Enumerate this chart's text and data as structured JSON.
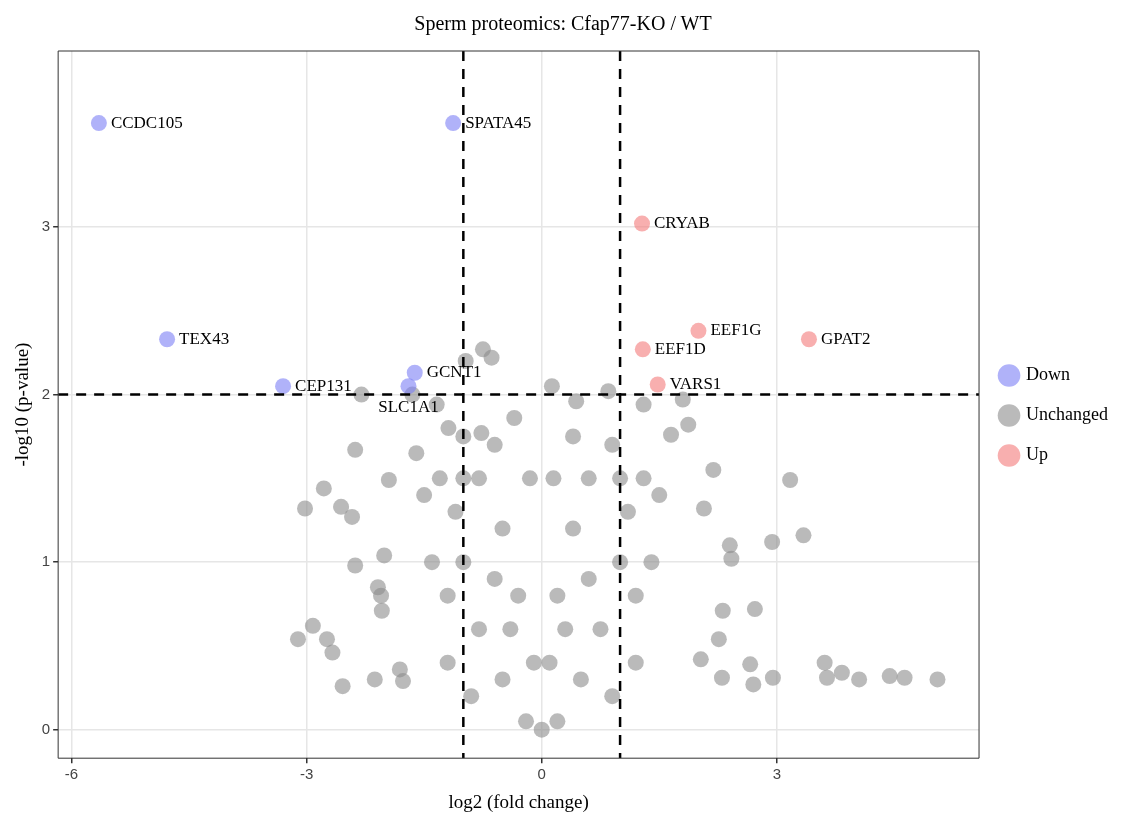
{
  "chart_data": {
    "type": "scatter",
    "title": "Sperm proteomics: Cfap77-KO / WT",
    "xlabel": "log2 (fold change)",
    "ylabel": "-log10 (p-value)",
    "xlim": [
      -6.17,
      5.58
    ],
    "ylim": [
      -0.17,
      4.05
    ],
    "xticks": [
      -6,
      -3,
      0,
      3
    ],
    "yticks": [
      0,
      1,
      2,
      3
    ],
    "grid": true,
    "legend": "right",
    "marker": "circle",
    "series": [
      {
        "name": "Down",
        "color": "#7b7ff5",
        "x": [
          -5.65,
          -1.13,
          -4.78,
          -3.3,
          -1.7,
          -1.62
        ],
        "values": [
          3.62,
          3.62,
          2.33,
          2.05,
          2.05,
          2.13
        ]
      },
      {
        "name": "Unchanged",
        "color": "#8c8c8c",
        "x": [
          3.61,
          3.83,
          4.05,
          4.44,
          4.63,
          5.05,
          3.64,
          3.17,
          3.34,
          2.94,
          2.72,
          2.42,
          2.4,
          2.19,
          2.07,
          2.31,
          2.26,
          2.3,
          2.66,
          2.7,
          2.95,
          2.03,
          1.87,
          1.65,
          1.8,
          1.3,
          -3.02,
          -2.78,
          -2.92,
          -2.74,
          -2.67,
          -2.54,
          -2.56,
          -2.04,
          -2.38,
          -2.01,
          -2.13,
          -1.77,
          -1.81,
          -2.42,
          -1.95,
          -1.6,
          -1.19,
          -1.65,
          -2.38,
          -2.3,
          -1.34,
          -0.97,
          -0.75,
          -0.64,
          0.13,
          0.85,
          0.44,
          -0.35,
          -0.77,
          -2.05,
          -3.11,
          -2.09,
          0,
          -0.2,
          0.2,
          -0.5,
          0.5,
          -0.8,
          0.75,
          -1,
          1,
          -1.1,
          1.1,
          -1,
          1,
          -0.8,
          0.6,
          -0.5,
          0.4,
          -0.3,
          0.2,
          -0.1,
          0.1,
          -1.3,
          1.3,
          -1.5,
          1.5,
          -1.2,
          1.2,
          -1.4,
          1.4,
          -0.9,
          0.9,
          -1.2,
          1.2,
          -0.6,
          0.4,
          -1,
          0.9,
          -0.15,
          0.15,
          -0.6,
          0.6,
          -0.4,
          0.3
        ],
        "values": [
          0.4,
          0.34,
          0.3,
          0.32,
          0.31,
          0.3,
          0.31,
          1.49,
          1.16,
          1.12,
          0.72,
          1.02,
          1.1,
          1.55,
          1.32,
          0.71,
          0.54,
          0.31,
          0.39,
          0.27,
          0.31,
          0.42,
          1.82,
          1.76,
          1.97,
          1.94,
          1.32,
          1.44,
          0.62,
          0.54,
          0.46,
          0.26,
          1.33,
          0.71,
          0.98,
          1.04,
          0.3,
          0.29,
          0.36,
          1.27,
          1.49,
          1.65,
          1.8,
          2,
          1.67,
          2,
          1.94,
          2.2,
          2.27,
          2.22,
          2.05,
          2.02,
          1.96,
          1.86,
          1.77,
          0.8,
          0.54,
          0.85,
          0,
          0.05,
          0.05,
          0.3,
          0.3,
          0.6,
          0.6,
          1,
          1,
          1.3,
          1.3,
          1.5,
          1.5,
          1.5,
          1.5,
          1.2,
          1.2,
          0.8,
          0.8,
          0.4,
          0.4,
          1.5,
          1.5,
          1.4,
          1.4,
          0.8,
          0.8,
          1,
          1,
          0.2,
          0.2,
          0.4,
          0.4,
          1.7,
          1.75,
          1.75,
          1.7,
          1.5,
          1.5,
          0.9,
          0.9,
          0.6,
          0.6
        ]
      },
      {
        "name": "Up",
        "color": "#f47a7a",
        "x": [
          1.28,
          2.0,
          3.41,
          1.29,
          1.48
        ],
        "values": [
          3.02,
          2.38,
          2.33,
          2.27,
          2.06
        ]
      }
    ],
    "ref_lines": [
      {
        "axis": "x",
        "value": -1,
        "line_style": "dashed"
      },
      {
        "axis": "x",
        "value": 1,
        "line_style": "dashed"
      },
      {
        "axis": "y",
        "value": 2,
        "line_style": "dashed"
      }
    ],
    "annotations": [
      {
        "text": "CCDC105",
        "x": -5.65,
        "y": 3.62
      },
      {
        "text": "SPATA45",
        "x": -1.13,
        "y": 3.62
      },
      {
        "text": "TEX43",
        "x": -4.78,
        "y": 2.33
      },
      {
        "text": "CEP131",
        "x": -3.3,
        "y": 2.05
      },
      {
        "text": "GCNT1",
        "x": -1.62,
        "y": 2.13
      },
      {
        "text": "SLC1A1",
        "x": -1.7,
        "y": 2.05
      },
      {
        "text": "CRYAB",
        "x": 1.28,
        "y": 3.02
      },
      {
        "text": "EEF1G",
        "x": 2.0,
        "y": 2.38
      },
      {
        "text": "GPAT2",
        "x": 3.41,
        "y": 2.33
      },
      {
        "text": "EEF1D",
        "x": 1.29,
        "y": 2.27
      },
      {
        "text": "VARS1",
        "x": 1.48,
        "y": 2.06
      }
    ]
  }
}
